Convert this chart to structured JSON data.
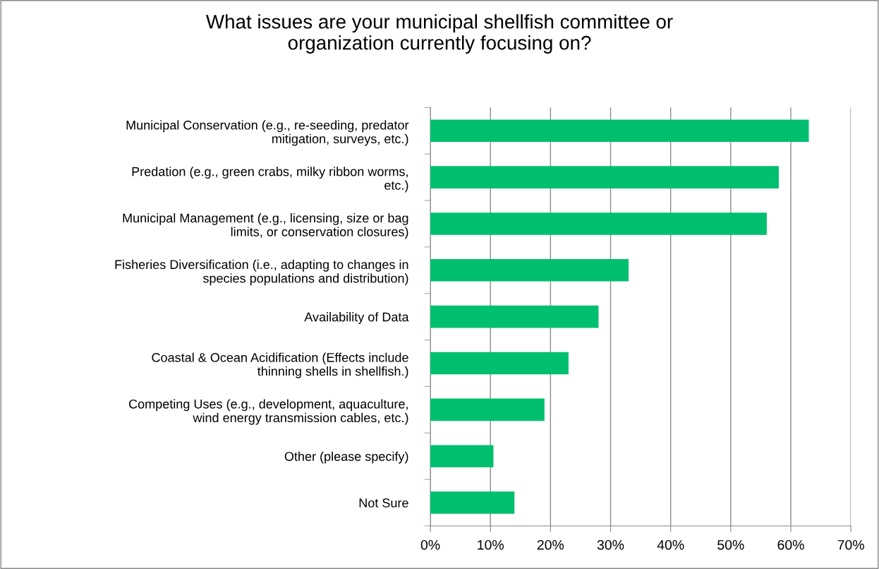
{
  "chart_data": {
    "type": "bar",
    "orientation": "horizontal",
    "title": "What issues are your municipal shellfish committee or\norganization currently focusing on?",
    "categories": [
      "Municipal Conservation (e.g., re-seeding, predator\nmitigation, surveys, etc.)",
      "Predation (e.g., green crabs, milky ribbon worms,\netc.)",
      "Municipal Management (e.g., licensing, size or bag\nlimits, or conservation closures)",
      "Fisheries Diversification (i.e., adapting to changes in\nspecies populations and distribution)",
      "Availability of Data",
      "Coastal & Ocean Acidification (Effects include\nthinning shells in shellfish.)",
      "Competing Uses (e.g., development, aquaculture,\nwind energy transmission cables, etc.)",
      "Other (please specify)",
      "Not Sure"
    ],
    "values": [
      63,
      58,
      56,
      33,
      28,
      23,
      19,
      10.5,
      14
    ],
    "color": "#00bf6f",
    "xlim": [
      0,
      70
    ],
    "xticks": [
      {
        "value": 0,
        "label": "0%"
      },
      {
        "value": 10,
        "label": "10%"
      },
      {
        "value": 20,
        "label": "20%"
      },
      {
        "value": 30,
        "label": "30%"
      },
      {
        "value": 40,
        "label": "40%"
      },
      {
        "value": 50,
        "label": "50%"
      },
      {
        "value": 60,
        "label": "60%"
      },
      {
        "value": 70,
        "label": "70%"
      }
    ],
    "grid": "x"
  }
}
